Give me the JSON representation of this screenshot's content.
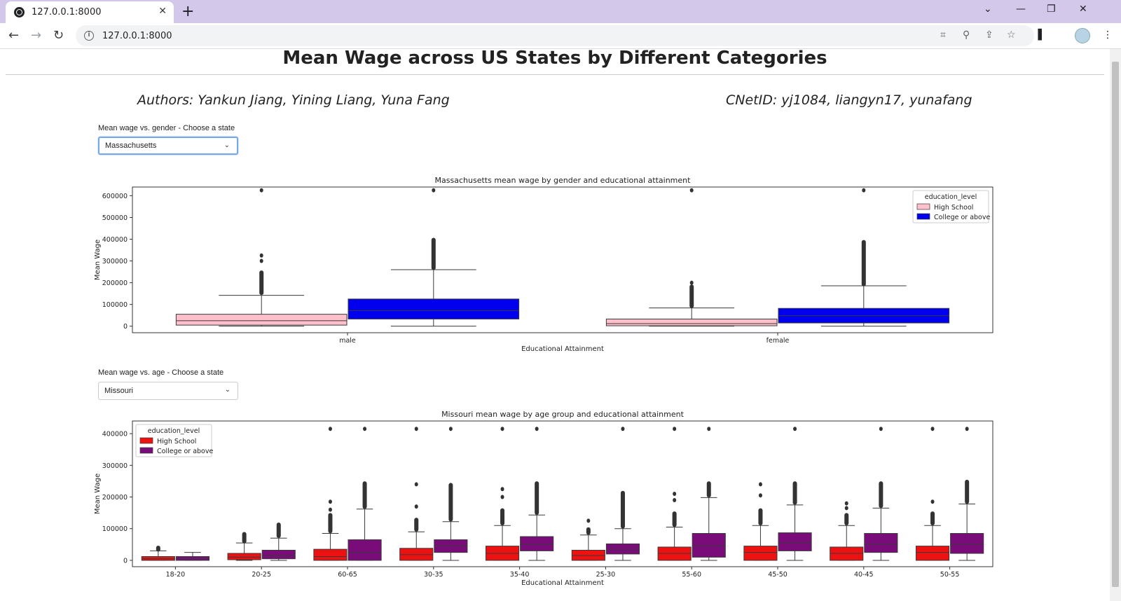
{
  "browser": {
    "tab_title": "127.0.0.1:8000",
    "url": "127.0.0.1:8000"
  },
  "page": {
    "title": "Mean Wage across US States by Different Categories",
    "authors": "Authors: Yankun Jiang, Yining Liang, Yuna Fang",
    "cnetid": "CNetID: yj1084, liangyn17, yunafang"
  },
  "gender_control": {
    "label": "Mean wage vs. gender - Choose a state",
    "selected": "Massachusetts"
  },
  "age_control": {
    "label": "Mean wage vs. age - Choose a state",
    "selected": "Missouri"
  },
  "chart_data": [
    {
      "type": "box",
      "title": "Massachusetts mean wage by gender and educational attainment",
      "xlabel": "Educational Attainment",
      "ylabel": "Mean Wage",
      "ylim": [
        -30000,
        640000
      ],
      "yticks": [
        0,
        100000,
        200000,
        300000,
        400000,
        500000,
        600000
      ],
      "categories": [
        "male",
        "female"
      ],
      "legend": {
        "title": "education_level",
        "placement": "top-right"
      },
      "series": [
        {
          "name": "High School",
          "color": "#ffc0cb",
          "boxes": [
            {
              "q1": 5000,
              "median": 25000,
              "q3": 55000,
              "whisker_low": 0,
              "whisker_high": 142000,
              "outliers_dense": [
                150000,
                250000
              ],
              "outliers": [
                300000,
                325000,
                625000
              ]
            },
            {
              "q1": 2000,
              "median": 12000,
              "q3": 33000,
              "whisker_low": 0,
              "whisker_high": 84000,
              "outliers_dense": [
                90000,
                185000
              ],
              "outliers": [
                200000,
                625000
              ]
            }
          ]
        },
        {
          "name": "College or above",
          "color": "#0000ee",
          "boxes": [
            {
              "q1": 33000,
              "median": 72000,
              "q3": 125000,
              "whisker_low": 0,
              "whisker_high": 260000,
              "outliers_dense": [
                265000,
                400000
              ],
              "outliers": [
                625000
              ]
            },
            {
              "q1": 15000,
              "median": 48000,
              "q3": 82000,
              "whisker_low": 0,
              "whisker_high": 186000,
              "outliers_dense": [
                190000,
                390000
              ],
              "outliers": [
                625000
              ]
            }
          ]
        }
      ]
    },
    {
      "type": "box",
      "title": "Missouri mean wage by age group and educational attainment",
      "xlabel": "Educational Attainment",
      "ylabel": "Mean Wage",
      "ylim": [
        -20000,
        440000
      ],
      "yticks": [
        0,
        100000,
        200000,
        300000,
        400000
      ],
      "categories": [
        "18-20",
        "20-25",
        "60-65",
        "30-35",
        "35-40",
        "25-30",
        "55-60",
        "45-50",
        "40-45",
        "50-55"
      ],
      "legend": {
        "title": "education_level",
        "placement": "top-left"
      },
      "series": [
        {
          "name": "High School",
          "color": "#ee1111",
          "boxes": [
            {
              "q1": 0,
              "median": 5000,
              "q3": 12000,
              "whisker_low": 0,
              "whisker_high": 30000,
              "outliers_dense": [
                32000,
                42000
              ],
              "outliers": []
            },
            {
              "q1": 2000,
              "median": 10000,
              "q3": 22000,
              "whisker_low": 0,
              "whisker_high": 55000,
              "outliers_dense": [
                58000,
                85000
              ],
              "outliers": []
            },
            {
              "q1": 0,
              "median": 12000,
              "q3": 35000,
              "whisker_low": 0,
              "whisker_high": 85000,
              "outliers_dense": [
                90000,
                145000
              ],
              "outliers": [
                160000,
                185000,
                415000
              ]
            },
            {
              "q1": 0,
              "median": 18000,
              "q3": 38000,
              "whisker_low": 0,
              "whisker_high": 90000,
              "outliers_dense": [
                95000,
                130000
              ],
              "outliers": [
                170000,
                240000,
                415000
              ]
            },
            {
              "q1": 0,
              "median": 22000,
              "q3": 45000,
              "whisker_low": 0,
              "whisker_high": 110000,
              "outliers_dense": [
                115000,
                160000
              ],
              "outliers": [
                200000,
                225000,
                415000
              ]
            },
            {
              "q1": 0,
              "median": 15000,
              "q3": 32000,
              "whisker_low": 0,
              "whisker_high": 80000,
              "outliers_dense": [
                85000,
                100000
              ],
              "outliers": [
                125000
              ]
            },
            {
              "q1": 0,
              "median": 22000,
              "q3": 42000,
              "whisker_low": 0,
              "whisker_high": 105000,
              "outliers_dense": [
                110000,
                150000
              ],
              "outliers": [
                190000,
                210000,
                415000
              ]
            },
            {
              "q1": 0,
              "median": 25000,
              "q3": 45000,
              "whisker_low": 0,
              "whisker_high": 110000,
              "outliers_dense": [
                115000,
                160000
              ],
              "outliers": [
                205000,
                240000
              ]
            },
            {
              "q1": 0,
              "median": 22000,
              "q3": 42000,
              "whisker_low": 0,
              "whisker_high": 110000,
              "outliers_dense": [
                115000,
                145000
              ],
              "outliers": [
                165000,
                180000
              ]
            },
            {
              "q1": 0,
              "median": 25000,
              "q3": 45000,
              "whisker_low": 0,
              "whisker_high": 110000,
              "outliers_dense": [
                115000,
                150000
              ],
              "outliers": [
                185000,
                415000
              ]
            }
          ]
        },
        {
          "name": "College or above",
          "color": "#7a0c7a",
          "boxes": [
            {
              "q1": 0,
              "median": 5000,
              "q3": 12000,
              "whisker_low": 0,
              "whisker_high": 25000,
              "outliers_dense": [],
              "outliers": []
            },
            {
              "q1": 5000,
              "median": 15000,
              "q3": 32000,
              "whisker_low": 0,
              "whisker_high": 70000,
              "outliers_dense": [
                75000,
                115000
              ],
              "outliers": []
            },
            {
              "q1": 0,
              "median": 25000,
              "q3": 65000,
              "whisker_low": 0,
              "whisker_high": 162000,
              "outliers_dense": [
                167000,
                245000
              ],
              "outliers": [
                415000
              ]
            },
            {
              "q1": 25000,
              "median": 45000,
              "q3": 65000,
              "whisker_low": 0,
              "whisker_high": 122000,
              "outliers_dense": [
                127000,
                240000
              ],
              "outliers": [
                415000
              ]
            },
            {
              "q1": 30000,
              "median": 52000,
              "q3": 75000,
              "whisker_low": 0,
              "whisker_high": 143000,
              "outliers_dense": [
                148000,
                245000
              ],
              "outliers": [
                415000
              ]
            },
            {
              "q1": 20000,
              "median": 35000,
              "q3": 52000,
              "whisker_low": 0,
              "whisker_high": 100000,
              "outliers_dense": [
                105000,
                215000
              ],
              "outliers": [
                415000
              ]
            },
            {
              "q1": 10000,
              "median": 45000,
              "q3": 85000,
              "whisker_low": 0,
              "whisker_high": 198000,
              "outliers_dense": [
                203000,
                245000
              ],
              "outliers": [
                415000
              ]
            },
            {
              "q1": 30000,
              "median": 55000,
              "q3": 87000,
              "whisker_low": 0,
              "whisker_high": 175000,
              "outliers_dense": [
                180000,
                245000
              ],
              "outliers": [
                415000
              ]
            },
            {
              "q1": 25000,
              "median": 50000,
              "q3": 85000,
              "whisker_low": 0,
              "whisker_high": 165000,
              "outliers_dense": [
                170000,
                245000
              ],
              "outliers": [
                415000
              ]
            },
            {
              "q1": 22000,
              "median": 50000,
              "q3": 85000,
              "whisker_low": 0,
              "whisker_high": 178000,
              "outliers_dense": [
                183000,
                250000
              ],
              "outliers": [
                415000
              ]
            }
          ]
        }
      ]
    }
  ]
}
